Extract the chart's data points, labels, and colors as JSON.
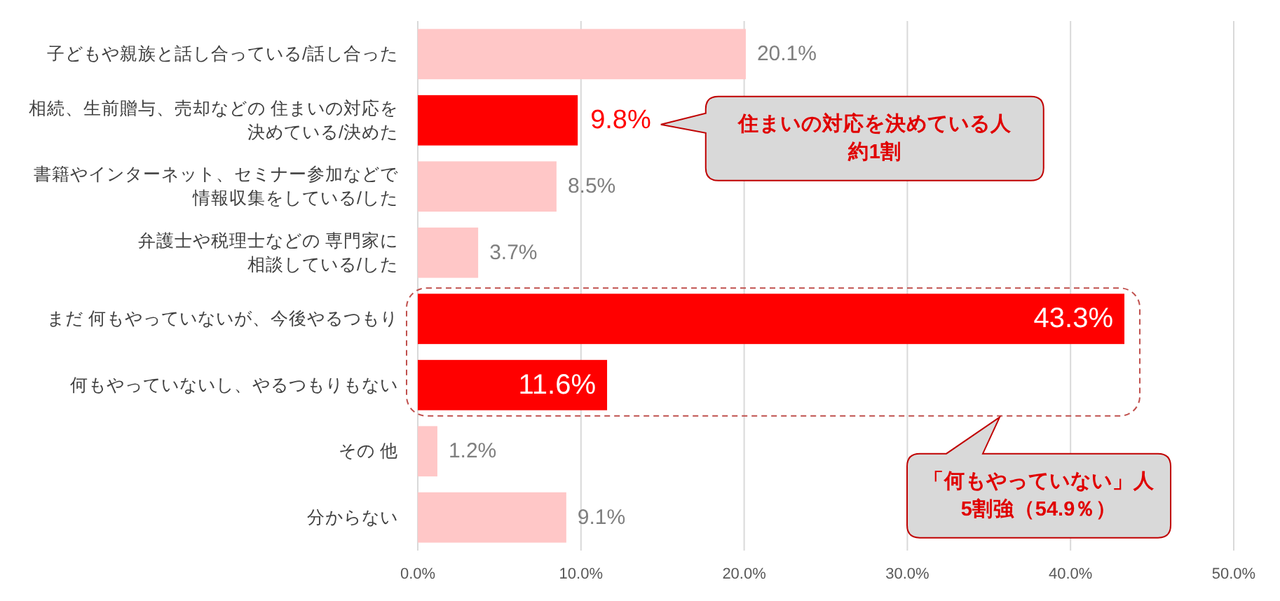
{
  "chart_data": {
    "type": "bar",
    "orientation": "horizontal",
    "categories": [
      "子どもや親族と話し合っている/話し合った",
      "相続、生前贈与、売却などの 住まいの対応を決めている/決めた",
      "書籍やインターネット、セミナー参加などで情報収集をしている/した",
      "弁護士や税理士などの 専門家に相談している/した",
      "まだ 何もやっていないが、今後やるつもり",
      "何もやっていないし、やるつもりもない",
      "その 他",
      "分からない"
    ],
    "values": [
      20.1,
      9.8,
      8.5,
      3.7,
      43.3,
      11.6,
      1.2,
      9.1
    ],
    "colors": [
      "#ffc7c7",
      "#ff0000",
      "#ffc7c7",
      "#ffc7c7",
      "#ff0000",
      "#ff0000",
      "#ffc7c7",
      "#ffc7c7"
    ],
    "value_labels": [
      "20.1%",
      "9.8%",
      "8.5%",
      "3.7%",
      "43.3%",
      "11.6%",
      "1.2%",
      "9.1%"
    ],
    "xlim": [
      0,
      50
    ],
    "xticks": [
      {
        "value": 0,
        "label": "0.0%"
      },
      {
        "value": 10,
        "label": "10.0%"
      },
      {
        "value": 20,
        "label": "20.0%"
      },
      {
        "value": 30,
        "label": "30.0%"
      },
      {
        "value": 40,
        "label": "40.0%"
      },
      {
        "value": 50,
        "label": "50.0%"
      }
    ],
    "grid": "x",
    "annotations": [
      "住まいの対応を決めている人約1割",
      "「何もやっていない」人5割強（54.9％）"
    ]
  }
}
